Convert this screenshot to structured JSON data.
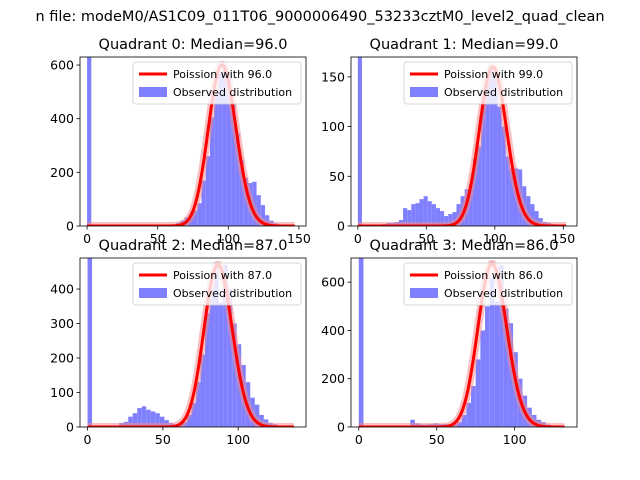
{
  "suptitle": "n file: modeM0/AS1C09_011T06_9000006490_53233cztM0_level2_quad_clean",
  "legend_labels": {
    "observed": "Observed distribution"
  },
  "colors": {
    "hist": "#8080ff",
    "fit": "#ff0000",
    "fit_glow": "#f28c8c"
  },
  "chart_data": [
    {
      "type": "bar",
      "quadrant": 0,
      "title": "Quadrant 0: Median=96.0",
      "fit_label": "Poission with 96.0",
      "median": 96,
      "xlim": [
        -5,
        155
      ],
      "ylim": [
        0,
        630
      ],
      "xticks": [
        0,
        50,
        100,
        150
      ],
      "yticks": [
        0,
        200,
        400,
        600
      ],
      "bin_width": 3,
      "bin_starts": [
        0,
        3,
        6,
        9,
        12,
        15,
        18,
        21,
        24,
        27,
        30,
        33,
        36,
        39,
        42,
        45,
        48,
        51,
        54,
        57,
        60,
        63,
        66,
        69,
        72,
        75,
        78,
        81,
        84,
        87,
        90,
        93,
        96,
        99,
        102,
        105,
        108,
        111,
        114,
        117,
        120,
        123,
        126,
        129,
        132,
        135,
        138,
        141,
        144
      ],
      "values": [
        630,
        0,
        0,
        0,
        0,
        0,
        0,
        0,
        0,
        0,
        0,
        0,
        0,
        0,
        0,
        0,
        0,
        2,
        3,
        4,
        6,
        12,
        20,
        32,
        42,
        58,
        85,
        170,
        260,
        405,
        500,
        570,
        600,
        575,
        460,
        345,
        245,
        180,
        160,
        165,
        115,
        78,
        40,
        20,
        10,
        6,
        3,
        2,
        1
      ],
      "fit_scale": 600
    },
    {
      "type": "bar",
      "quadrant": 1,
      "title": "Quadrant 1: Median=99.0",
      "fit_label": "Poission with 99.0",
      "median": 99,
      "xlim": [
        -5,
        160
      ],
      "ylim": [
        0,
        170
      ],
      "xticks": [
        0,
        50,
        100,
        150
      ],
      "yticks": [
        0,
        50,
        100,
        150
      ],
      "bin_width": 3,
      "bin_starts": [
        0,
        3,
        6,
        9,
        12,
        15,
        18,
        21,
        24,
        27,
        30,
        33,
        36,
        39,
        42,
        45,
        48,
        51,
        54,
        57,
        60,
        63,
        66,
        69,
        72,
        75,
        78,
        81,
        84,
        87,
        90,
        93,
        96,
        99,
        102,
        105,
        108,
        111,
        114,
        117,
        120,
        123,
        126,
        129,
        132,
        135,
        138,
        141,
        144,
        147,
        150,
        153,
        156
      ],
      "values": [
        170,
        0,
        0,
        0,
        1,
        1,
        2,
        3,
        3,
        4,
        6,
        18,
        16,
        22,
        23,
        27,
        30,
        25,
        22,
        18,
        15,
        10,
        12,
        14,
        22,
        30,
        37,
        42,
        68,
        80,
        130,
        150,
        160,
        148,
        120,
        100,
        70,
        58,
        58,
        57,
        40,
        30,
        22,
        15,
        8,
        4,
        3,
        2,
        1,
        1,
        0,
        0,
        0
      ],
      "fit_scale": 160
    },
    {
      "type": "bar",
      "quadrant": 2,
      "title": "Quadrant 2: Median=87.0",
      "fit_label": "Poission with 87.0",
      "median": 87,
      "xlim": [
        -5,
        145
      ],
      "ylim": [
        0,
        490
      ],
      "xticks": [
        0,
        50,
        100
      ],
      "yticks": [
        0,
        100,
        200,
        300,
        400
      ],
      "bin_width": 3,
      "bin_starts": [
        0,
        3,
        6,
        9,
        12,
        15,
        18,
        21,
        24,
        27,
        30,
        33,
        36,
        39,
        42,
        45,
        48,
        51,
        54,
        57,
        60,
        63,
        66,
        69,
        72,
        75,
        78,
        81,
        84,
        87,
        90,
        93,
        96,
        99,
        102,
        105,
        108,
        111,
        114,
        117,
        120,
        123,
        126,
        129,
        132,
        135,
        138
      ],
      "values": [
        490,
        0,
        0,
        0,
        0,
        0,
        0,
        12,
        15,
        30,
        40,
        55,
        60,
        50,
        45,
        40,
        30,
        20,
        12,
        8,
        8,
        15,
        35,
        70,
        130,
        210,
        330,
        400,
        475,
        360,
        470,
        400,
        300,
        240,
        180,
        130,
        85,
        65,
        35,
        22,
        12,
        8,
        4,
        2,
        1,
        0,
        0
      ],
      "fit_scale": 470
    },
    {
      "type": "bar",
      "quadrant": 3,
      "title": "Quadrant 3: Median=86.0",
      "fit_label": "Poission with 86.0",
      "median": 86,
      "xlim": [
        -5,
        140
      ],
      "ylim": [
        0,
        700
      ],
      "xticks": [
        0,
        50,
        100
      ],
      "yticks": [
        0,
        200,
        400,
        600
      ],
      "bin_width": 3,
      "bin_starts": [
        0,
        3,
        6,
        9,
        12,
        15,
        18,
        21,
        24,
        27,
        30,
        33,
        36,
        39,
        42,
        45,
        48,
        51,
        54,
        57,
        60,
        63,
        66,
        69,
        72,
        75,
        78,
        81,
        84,
        87,
        90,
        93,
        96,
        99,
        102,
        105,
        108,
        111,
        114,
        117,
        120,
        123,
        126,
        129
      ],
      "values": [
        700,
        0,
        0,
        0,
        0,
        0,
        0,
        0,
        0,
        0,
        0,
        30,
        15,
        10,
        10,
        12,
        15,
        12,
        12,
        10,
        12,
        20,
        50,
        100,
        170,
        280,
        400,
        500,
        620,
        520,
        670,
        490,
        430,
        310,
        200,
        130,
        80,
        50,
        30,
        20,
        10,
        5,
        3,
        1
      ],
      "fit_scale": 675
    }
  ]
}
